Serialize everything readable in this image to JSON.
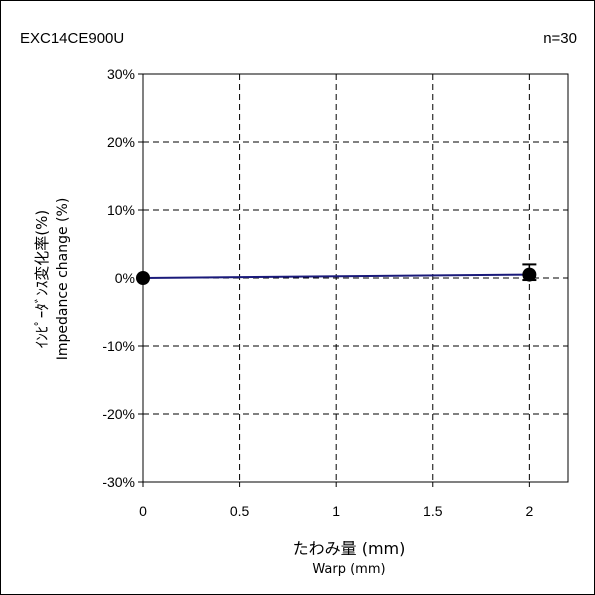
{
  "header": {
    "part_number": "EXC14CE900U",
    "sample_size": "n=30"
  },
  "chart_data": {
    "type": "line",
    "title": "",
    "xlabel_jp": "たわみ量 (mm)",
    "xlabel_en": "Warp (mm)",
    "ylabel_jp": "ｲﾝﾋﾟｰﾀﾞﾝｽ変化率(%)",
    "ylabel_en": "Impedance change (%)",
    "xlim": [
      0,
      2.2
    ],
    "ylim": [
      -30,
      30
    ],
    "x_ticks": [
      0,
      0.5,
      1,
      1.5,
      2
    ],
    "x_tick_labels": [
      "0",
      "0.5",
      "1",
      "1.5",
      "2"
    ],
    "y_ticks": [
      30,
      20,
      10,
      0,
      -10,
      -20,
      -30
    ],
    "y_tick_labels": [
      "30%",
      "20%",
      "10%",
      "0%",
      "-10%",
      "-20%",
      "-30%"
    ],
    "grid": true,
    "series": [
      {
        "x": [
          0,
          2
        ],
        "y": [
          0,
          0.5
        ],
        "y_max": [
          0,
          2
        ],
        "y_min": [
          0,
          -0.3
        ],
        "line_color": "#1a1a7a",
        "marker_color": "#000000"
      }
    ]
  }
}
